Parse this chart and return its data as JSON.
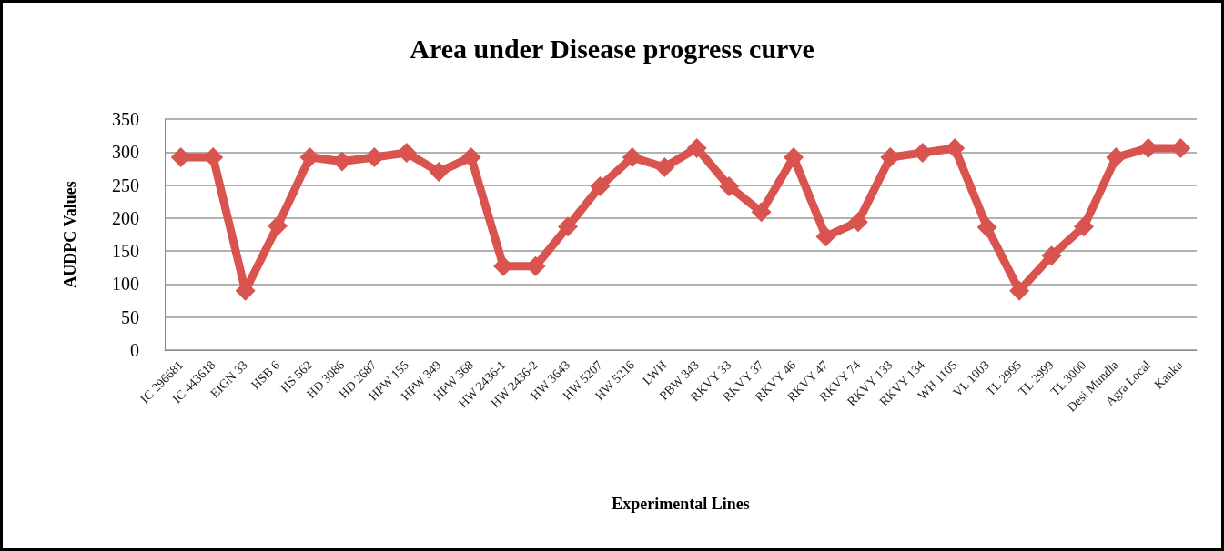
{
  "chart_data": {
    "type": "line",
    "title": "Area under Disease progress curve",
    "xlabel": "Experimental Lines",
    "ylabel": "AUDPC Values",
    "categories": [
      "IC 296681",
      "IC 443618",
      "EIGN 33",
      "HSB 6",
      "HS 562",
      "HD 3086",
      "HD 2687",
      "HPW 155",
      "HPW 349",
      "HPW 368",
      "HW 2436-1",
      "HW 2436-2",
      "HW 3643",
      "HW 5207",
      "HW 5216",
      "LWH",
      "PBW 343",
      "RKVY 33",
      "RKVY 37",
      "RKVY 46",
      "RKVY 47",
      "RKVY 74",
      "RKVY 133",
      "RKVY 134",
      "WH 1105",
      "VL 1003",
      "TL 2995",
      "TL 2999",
      "TL 3000",
      "Desi Mundla",
      "Agra Local",
      "Kanku"
    ],
    "series": [
      {
        "color": "#d9534f",
        "values": [
          292,
          292,
          90,
          188,
          292,
          286,
          292,
          299,
          270,
          292,
          127,
          127,
          187,
          248,
          292,
          277,
          306,
          248,
          209,
          292,
          172,
          194,
          292,
          299,
          306,
          186,
          90,
          143,
          187,
          292,
          306,
          306
        ]
      }
    ],
    "ylim": [
      0,
      350
    ],
    "yticks": [
      0,
      50,
      100,
      150,
      200,
      250,
      300,
      350
    ],
    "grid": "y",
    "marker": "diamond",
    "line_style": "solid"
  }
}
